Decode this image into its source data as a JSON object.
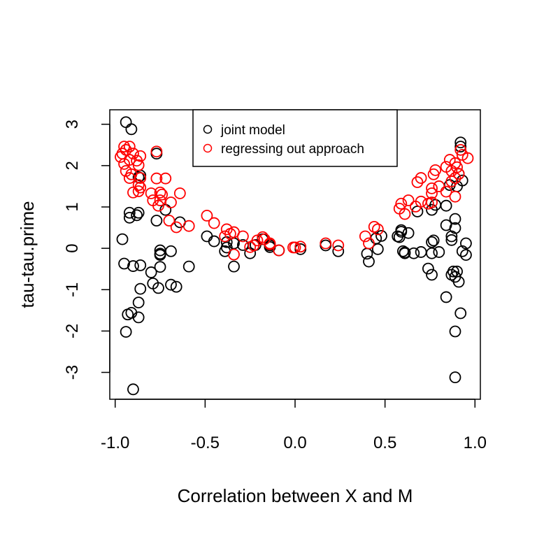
{
  "chart_data": {
    "type": "scatter",
    "title": "",
    "xlabel": "Correlation between X and M",
    "ylabel": "tau-tau.prime",
    "xlim": [
      -1.03,
      1.03
    ],
    "ylim": [
      -3.65,
      3.35
    ],
    "x_ticks": [
      -1.0,
      -0.5,
      0.0,
      0.5,
      1.0
    ],
    "x_tick_labels": [
      "-1.0",
      "-0.5",
      "0.0",
      "0.5",
      "1.0"
    ],
    "y_ticks": [
      -3,
      -2,
      -1,
      0,
      1,
      2,
      3
    ],
    "y_tick_labels": [
      "-3",
      "-2",
      "-1",
      "0",
      "1",
      "2",
      "3"
    ],
    "grid": false,
    "legend": {
      "position": "top-center",
      "entries": [
        {
          "label": "joint model",
          "color": "#000000"
        },
        {
          "label": "regressing out approach",
          "color": "#ff0000"
        }
      ]
    },
    "series": [
      {
        "name": "joint model",
        "color": "#000000",
        "marker": "open-circle",
        "points": [
          [
            -0.94,
            3.05
          ],
          [
            -0.91,
            2.88
          ],
          [
            -0.77,
            2.29
          ],
          [
            -0.92,
            0.86
          ],
          [
            -0.92,
            0.74
          ],
          [
            -0.88,
            0.8
          ],
          [
            -0.87,
            0.86
          ],
          [
            -0.77,
            0.67
          ],
          [
            -0.72,
            0.93
          ],
          [
            -0.64,
            0.63
          ],
          [
            -0.96,
            0.22
          ],
          [
            -0.75,
            -0.05
          ],
          [
            -0.75,
            -0.13
          ],
          [
            -0.75,
            -0.16
          ],
          [
            -0.69,
            -0.07
          ],
          [
            -0.95,
            -0.37
          ],
          [
            -0.9,
            -0.43
          ],
          [
            -0.86,
            -0.41
          ],
          [
            -0.8,
            -0.58
          ],
          [
            -0.75,
            -0.45
          ],
          [
            -0.59,
            -0.44
          ],
          [
            -0.79,
            -0.85
          ],
          [
            -0.76,
            -0.96
          ],
          [
            -0.69,
            -0.88
          ],
          [
            -0.66,
            -0.93
          ],
          [
            -0.86,
            -0.98
          ],
          [
            -0.87,
            -1.31
          ],
          [
            -0.93,
            -1.6
          ],
          [
            -0.91,
            -1.56
          ],
          [
            -0.87,
            -1.67
          ],
          [
            -0.94,
            -2.02
          ],
          [
            -0.9,
            -3.41
          ],
          [
            -0.87,
            1.72
          ],
          [
            -0.86,
            1.76
          ],
          [
            -0.49,
            0.29
          ],
          [
            -0.45,
            0.17
          ],
          [
            -0.38,
            0.15
          ],
          [
            -0.34,
            0.12
          ],
          [
            -0.38,
            0.02
          ],
          [
            -0.39,
            -0.07
          ],
          [
            -0.29,
            0.08
          ],
          [
            -0.25,
            -0.12
          ],
          [
            -0.22,
            0.08
          ],
          [
            -0.18,
            0.22
          ],
          [
            -0.14,
            0.07
          ],
          [
            -0.34,
            -0.44
          ],
          [
            -0.14,
            0.03
          ],
          [
            -0.09,
            -0.05
          ],
          [
            0.03,
            -0.02
          ],
          [
            0.17,
            0.07
          ],
          [
            0.24,
            -0.07
          ],
          [
            0.48,
            0.3
          ],
          [
            0.45,
            0.24
          ],
          [
            0.46,
            -0.02
          ],
          [
            0.4,
            -0.13
          ],
          [
            0.41,
            -0.32
          ],
          [
            0.59,
            0.44
          ],
          [
            0.57,
            0.29
          ],
          [
            0.59,
            0.4
          ],
          [
            0.63,
            0.37
          ],
          [
            0.58,
            0.27
          ],
          [
            0.61,
            -0.1
          ],
          [
            0.6,
            -0.07
          ],
          [
            0.61,
            -0.12
          ],
          [
            0.66,
            -0.12
          ],
          [
            0.7,
            -0.09
          ],
          [
            0.76,
            0.15
          ],
          [
            0.76,
            -0.12
          ],
          [
            0.8,
            -0.09
          ],
          [
            0.74,
            -0.49
          ],
          [
            0.76,
            -0.64
          ],
          [
            0.87,
            0.2
          ],
          [
            0.95,
            0.12
          ],
          [
            0.93,
            -0.07
          ],
          [
            0.95,
            -0.16
          ],
          [
            0.88,
            -0.56
          ],
          [
            0.9,
            -0.56
          ],
          [
            0.87,
            -0.64
          ],
          [
            0.89,
            -0.69
          ],
          [
            0.91,
            -0.81
          ],
          [
            0.84,
            -1.18
          ],
          [
            0.92,
            -1.57
          ],
          [
            0.89,
            -2.01
          ],
          [
            0.89,
            -3.12
          ],
          [
            0.92,
            2.56
          ],
          [
            0.92,
            2.46
          ],
          [
            0.91,
            1.8
          ],
          [
            0.93,
            1.64
          ],
          [
            0.86,
            1.53
          ],
          [
            0.9,
            1.5
          ],
          [
            0.78,
            1.05
          ],
          [
            0.84,
            1.03
          ],
          [
            0.76,
            0.93
          ],
          [
            0.68,
            0.89
          ],
          [
            0.89,
            0.71
          ],
          [
            0.84,
            0.56
          ],
          [
            0.89,
            0.49
          ],
          [
            0.87,
            0.29
          ],
          [
            0.77,
            0.19
          ]
        ]
      },
      {
        "name": "regressing out approach",
        "color": "#ff0000",
        "marker": "open-circle",
        "points": [
          [
            -0.95,
            2.46
          ],
          [
            -0.92,
            2.46
          ],
          [
            -0.96,
            2.29
          ],
          [
            -0.94,
            2.38
          ],
          [
            -0.97,
            2.21
          ],
          [
            -0.9,
            2.29
          ],
          [
            -0.86,
            2.23
          ],
          [
            -0.92,
            2.14
          ],
          [
            -0.88,
            2.12
          ],
          [
            -0.95,
            2.04
          ],
          [
            -0.87,
            2.01
          ],
          [
            -0.94,
            1.87
          ],
          [
            -0.91,
            1.79
          ],
          [
            -0.92,
            1.7
          ],
          [
            -0.86,
            1.7
          ],
          [
            -0.87,
            1.53
          ],
          [
            -0.86,
            1.47
          ],
          [
            -0.9,
            1.35
          ],
          [
            -0.87,
            1.38
          ],
          [
            -0.77,
            1.69
          ],
          [
            -0.72,
            1.69
          ],
          [
            -0.8,
            1.33
          ],
          [
            -0.75,
            1.35
          ],
          [
            -0.74,
            1.3
          ],
          [
            -0.64,
            1.33
          ],
          [
            -0.79,
            1.16
          ],
          [
            -0.75,
            1.16
          ],
          [
            -0.76,
            1.03
          ],
          [
            -0.69,
            1.11
          ],
          [
            -0.77,
            2.34
          ],
          [
            -0.7,
            0.67
          ],
          [
            -0.66,
            0.51
          ],
          [
            -0.59,
            0.54
          ],
          [
            -0.49,
            0.79
          ],
          [
            -0.45,
            0.61
          ],
          [
            -0.38,
            0.46
          ],
          [
            -0.34,
            0.39
          ],
          [
            -0.39,
            0.29
          ],
          [
            -0.36,
            0.35
          ],
          [
            -0.29,
            0.29
          ],
          [
            -0.25,
            0.03
          ],
          [
            -0.23,
            0.07
          ],
          [
            -0.21,
            0.19
          ],
          [
            -0.18,
            0.27
          ],
          [
            -0.17,
            0.22
          ],
          [
            -0.14,
            0.1
          ],
          [
            -0.09,
            -0.05
          ],
          [
            -0.01,
            0.02
          ],
          [
            -0.34,
            -0.15
          ],
          [
            -0.14,
            0.12
          ],
          [
            0.0,
            0.02
          ],
          [
            0.03,
            0.04
          ],
          [
            0.17,
            0.12
          ],
          [
            0.24,
            0.07
          ],
          [
            0.39,
            0.29
          ],
          [
            0.41,
            0.12
          ],
          [
            0.44,
            0.52
          ],
          [
            0.46,
            0.46
          ],
          [
            0.92,
            2.38
          ],
          [
            0.93,
            2.26
          ],
          [
            0.96,
            2.18
          ],
          [
            0.86,
            2.14
          ],
          [
            0.89,
            2.06
          ],
          [
            0.84,
            1.97
          ],
          [
            0.9,
            1.96
          ],
          [
            0.87,
            1.87
          ],
          [
            0.91,
            1.8
          ],
          [
            0.78,
            1.89
          ],
          [
            0.77,
            1.79
          ],
          [
            0.7,
            1.7
          ],
          [
            0.68,
            1.6
          ],
          [
            0.89,
            1.7
          ],
          [
            0.87,
            1.62
          ],
          [
            0.8,
            1.5
          ],
          [
            0.76,
            1.45
          ],
          [
            0.76,
            1.33
          ],
          [
            0.84,
            1.37
          ],
          [
            0.89,
            1.25
          ],
          [
            0.63,
            1.16
          ],
          [
            0.59,
            1.08
          ],
          [
            0.58,
            0.96
          ],
          [
            0.61,
            0.83
          ],
          [
            0.7,
            1.13
          ],
          [
            0.74,
            1.08
          ],
          [
            0.76,
            1.11
          ],
          [
            0.67,
            1.01
          ]
        ]
      }
    ]
  }
}
